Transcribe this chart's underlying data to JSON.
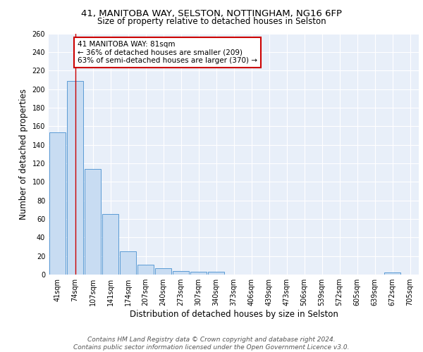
{
  "title1": "41, MANITOBA WAY, SELSTON, NOTTINGHAM, NG16 6FP",
  "title2": "Size of property relative to detached houses in Selston",
  "xlabel": "Distribution of detached houses by size in Selston",
  "ylabel": "Number of detached properties",
  "footer1": "Contains HM Land Registry data © Crown copyright and database right 2024.",
  "footer2": "Contains public sector information licensed under the Open Government Licence v3.0.",
  "categories": [
    "41sqm",
    "74sqm",
    "107sqm",
    "141sqm",
    "174sqm",
    "207sqm",
    "240sqm",
    "273sqm",
    "307sqm",
    "340sqm",
    "373sqm",
    "406sqm",
    "439sqm",
    "473sqm",
    "506sqm",
    "539sqm",
    "572sqm",
    "605sqm",
    "639sqm",
    "672sqm",
    "705sqm"
  ],
  "values": [
    153,
    209,
    114,
    65,
    25,
    11,
    7,
    4,
    3,
    3,
    0,
    0,
    0,
    0,
    0,
    0,
    0,
    0,
    0,
    2,
    0
  ],
  "bar_color": "#c8dcf2",
  "bar_edge_color": "#5b9bd5",
  "property_line_x": 1.0,
  "property_line_color": "#cc0000",
  "annotation_text": "41 MANITOBA WAY: 81sqm\n← 36% of detached houses are smaller (209)\n63% of semi-detached houses are larger (370) →",
  "annotation_box_color": "#ffffff",
  "annotation_box_edge_color": "#cc0000",
  "ylim": [
    0,
    260
  ],
  "yticks": [
    0,
    20,
    40,
    60,
    80,
    100,
    120,
    140,
    160,
    180,
    200,
    220,
    240,
    260
  ],
  "bg_color": "#e8eff9",
  "grid_color": "#ffffff",
  "title1_fontsize": 9.5,
  "title2_fontsize": 8.5,
  "axis_label_fontsize": 8.5,
  "tick_fontsize": 7,
  "footer_fontsize": 6.5,
  "annotation_fontsize": 7.5
}
